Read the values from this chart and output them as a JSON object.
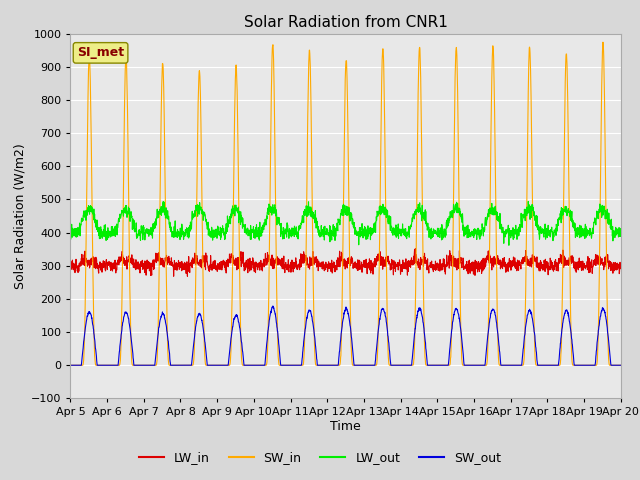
{
  "title": "Solar Radiation from CNR1",
  "xlabel": "Time",
  "ylabel": "Solar Radiation (W/m2)",
  "ylim": [
    -100,
    1000
  ],
  "start_day": 5,
  "end_day": 20,
  "x_tick_labels": [
    "Apr 5",
    "Apr 6",
    "Apr 7",
    "Apr 8",
    "Apr 9",
    "Apr 10",
    "Apr 11",
    "Apr 12",
    "Apr 13",
    "Apr 14",
    "Apr 15",
    "Apr 16",
    "Apr 17",
    "Apr 18",
    "Apr 19",
    "Apr 20"
  ],
  "colors": {
    "LW_in": "#dd0000",
    "SW_in": "#ffaa00",
    "LW_out": "#00ee00",
    "SW_out": "#0000dd"
  },
  "fig_facecolor": "#d8d8d8",
  "ax_facecolor": "#e8e8e8",
  "grid_color": "#ffffff",
  "legend_label": "SI_met",
  "legend_text_color": "#880000",
  "legend_box_facecolor": "#eeee88",
  "legend_box_edgecolor": "#888800",
  "line_width": 0.8,
  "sw_in_peaks": [
    930,
    930,
    910,
    890,
    900,
    970,
    950,
    920,
    955,
    960,
    960,
    960,
    960,
    940,
    970
  ],
  "sw_out_peaks": [
    160,
    160,
    155,
    155,
    150,
    175,
    165,
    170,
    170,
    170,
    170,
    170,
    165,
    165,
    170
  ],
  "lw_in_base": 300,
  "lw_in_amp": 35,
  "lw_out_base": 400,
  "lw_out_amp": 70
}
